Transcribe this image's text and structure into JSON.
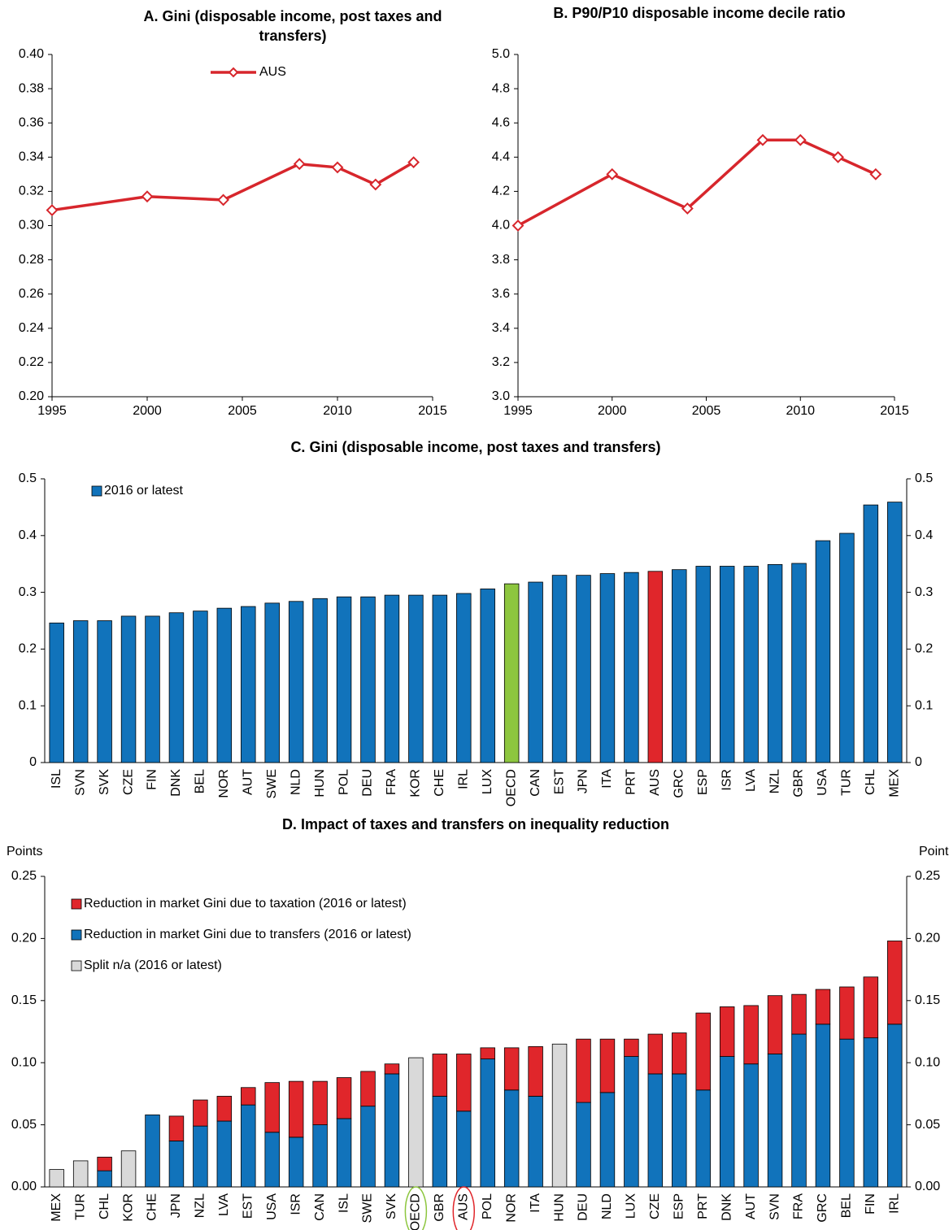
{
  "chart_data": [
    {
      "type": "line",
      "title": "A. Gini (disposable income, post taxes and transfers)",
      "x": [
        1995,
        2000,
        2004,
        2008,
        2010,
        2012,
        2014
      ],
      "series": [
        {
          "name": "AUS",
          "color": "#d7262c",
          "values": [
            0.309,
            0.317,
            0.315,
            0.336,
            0.334,
            0.324,
            0.337
          ]
        }
      ],
      "xlim": [
        1995,
        2015
      ],
      "xticks": [
        1995,
        2000,
        2005,
        2010,
        2015
      ],
      "ylim": [
        0.2,
        0.4
      ],
      "yticks": [
        {
          "value": 0.2,
          "label": "0.20"
        },
        0.22,
        0.24,
        0.26,
        0.28,
        {
          "value": 0.3,
          "label": "0.30"
        },
        0.32,
        0.34,
        0.36,
        0.38,
        {
          "value": 0.4,
          "label": "0.40"
        }
      ],
      "grid": false
    },
    {
      "type": "line",
      "title": "B. P90/P10 disposable income decile ratio",
      "x": [
        1995,
        2000,
        2004,
        2008,
        2010,
        2012,
        2014
      ],
      "series": [
        {
          "color": "#d7262c",
          "values": [
            4.0,
            4.3,
            4.1,
            4.5,
            4.5,
            4.4,
            4.3
          ]
        }
      ],
      "xlim": [
        1995,
        2015
      ],
      "xticks": [
        1995,
        2000,
        2005,
        2010,
        2015
      ],
      "ylim": [
        3.0,
        5.0
      ],
      "yticks": [
        {
          "value": 3,
          "label": "3.0"
        },
        3.2,
        3.4,
        3.6,
        3.8,
        {
          "value": 4,
          "label": "4.0"
        },
        4.2,
        4.4,
        4.6,
        4.8,
        {
          "value": 5,
          "label": "5.0"
        }
      ],
      "grid": false
    },
    {
      "type": "bar",
      "title": "C. Gini (disposable income, post taxes and transfers)",
      "categories": [
        "ISL",
        "SVN",
        "SVK",
        "CZE",
        "FIN",
        "DNK",
        "BEL",
        "NOR",
        "AUT",
        "SWE",
        "NLD",
        "HUN",
        "POL",
        "DEU",
        "FRA",
        "KOR",
        "CHE",
        "IRL",
        "LUX",
        "OECD",
        "CAN",
        "EST",
        "JPN",
        "ITA",
        "PRT",
        "AUS",
        "GRC",
        "ESP",
        "ISR",
        "LVA",
        "NZL",
        "GBR",
        "USA",
        "TUR",
        "CHL",
        "MEX"
      ],
      "series": [
        {
          "name": "2016 or latest",
          "color": "#1173bb",
          "values": [
            0.246,
            0.25,
            0.25,
            0.258,
            0.258,
            0.264,
            0.267,
            0.272,
            0.275,
            0.281,
            0.284,
            0.289,
            0.292,
            0.292,
            0.295,
            0.295,
            0.295,
            0.298,
            0.306,
            0.315,
            0.318,
            0.33,
            0.33,
            0.333,
            0.335,
            0.337,
            0.34,
            0.346,
            0.346,
            0.346,
            0.349,
            0.351,
            0.391,
            0.404,
            0.454,
            0.459
          ],
          "bar_colors": [
            null,
            null,
            null,
            null,
            null,
            null,
            null,
            null,
            null,
            null,
            null,
            null,
            null,
            null,
            null,
            null,
            null,
            null,
            null,
            "#8dc63f",
            null,
            null,
            null,
            null,
            null,
            "#e0262b",
            null,
            null,
            null,
            null,
            null,
            null,
            null,
            null,
            null,
            null
          ]
        }
      ],
      "ylim": [
        0,
        0.5
      ],
      "yticks": [
        0,
        0.1,
        0.2,
        0.3,
        0.4,
        0.5
      ],
      "right_axis": true,
      "grid": false
    },
    {
      "type": "stacked_bar",
      "title": "D.  Impact of taxes and transfers on inequality reduction",
      "y_label": "Points",
      "categories": [
        "MEX",
        "TUR",
        "CHL",
        "KOR",
        "CHE",
        "JPN",
        "NZL",
        "LVA",
        "EST",
        "USA",
        "ISR",
        "CAN",
        "ISL",
        "SWE",
        "SVK",
        "OECD",
        "GBR",
        "AUS",
        "POL",
        "NOR",
        "ITA",
        "HUN",
        "DEU",
        "NLD",
        "LUX",
        "CZE",
        "ESP",
        "PRT",
        "DNK",
        "AUT",
        "SVN",
        "FRA",
        "GRC",
        "BEL",
        "FIN",
        "IRL"
      ],
      "series": [
        {
          "name": "Reduction in market Gini due to taxation (2016 or latest)",
          "color": "#e0262b",
          "values": [
            null,
            null,
            0.011,
            null,
            null,
            0.02,
            0.021,
            0.02,
            0.014,
            0.04,
            0.045,
            0.035,
            0.033,
            0.028,
            0.008,
            null,
            0.034,
            0.046,
            0.009,
            0.034,
            0.04,
            null,
            0.051,
            0.043,
            0.014,
            0.032,
            0.033,
            0.062,
            0.04,
            0.047,
            0.047,
            0.032,
            0.028,
            0.042,
            0.049,
            0.067
          ]
        },
        {
          "name": "Reduction in market Gini due to transfers (2016 or latest)",
          "color": "#1173bb",
          "values": [
            null,
            null,
            0.013,
            null,
            0.058,
            0.037,
            0.049,
            0.053,
            0.066,
            0.044,
            0.04,
            0.05,
            0.055,
            0.065,
            0.091,
            null,
            0.073,
            0.061,
            0.103,
            0.078,
            0.073,
            null,
            0.068,
            0.076,
            0.105,
            0.091,
            0.091,
            0.078,
            0.105,
            0.099,
            0.107,
            0.123,
            0.131,
            0.119,
            0.12,
            0.131
          ]
        },
        {
          "name": "Split n/a (2016 or latest)",
          "color": "#d9d9d9",
          "values": [
            0.014,
            0.021,
            null,
            0.029,
            null,
            null,
            null,
            null,
            null,
            null,
            null,
            null,
            null,
            null,
            null,
            0.104,
            null,
            null,
            null,
            null,
            null,
            0.115,
            null,
            null,
            null,
            null,
            null,
            null,
            null,
            null,
            null,
            null,
            null,
            null,
            null,
            null
          ]
        }
      ],
      "label_circles": [
        null,
        null,
        null,
        null,
        null,
        null,
        null,
        null,
        null,
        null,
        null,
        null,
        null,
        null,
        null,
        "#8dc63f",
        null,
        "#e0262b",
        null,
        null,
        null,
        null,
        null,
        null,
        null,
        null,
        null,
        null,
        null,
        null,
        null,
        null,
        null,
        null,
        null,
        null
      ],
      "ylim": [
        0,
        0.25
      ],
      "yticks": [
        {
          "value": 0,
          "label": "0.00"
        },
        0.05,
        {
          "value": 0.1,
          "label": "0.10"
        },
        0.15,
        {
          "value": 0.2,
          "label": "0.20"
        },
        0.25
      ],
      "right_axis": true,
      "grid": false
    }
  ]
}
